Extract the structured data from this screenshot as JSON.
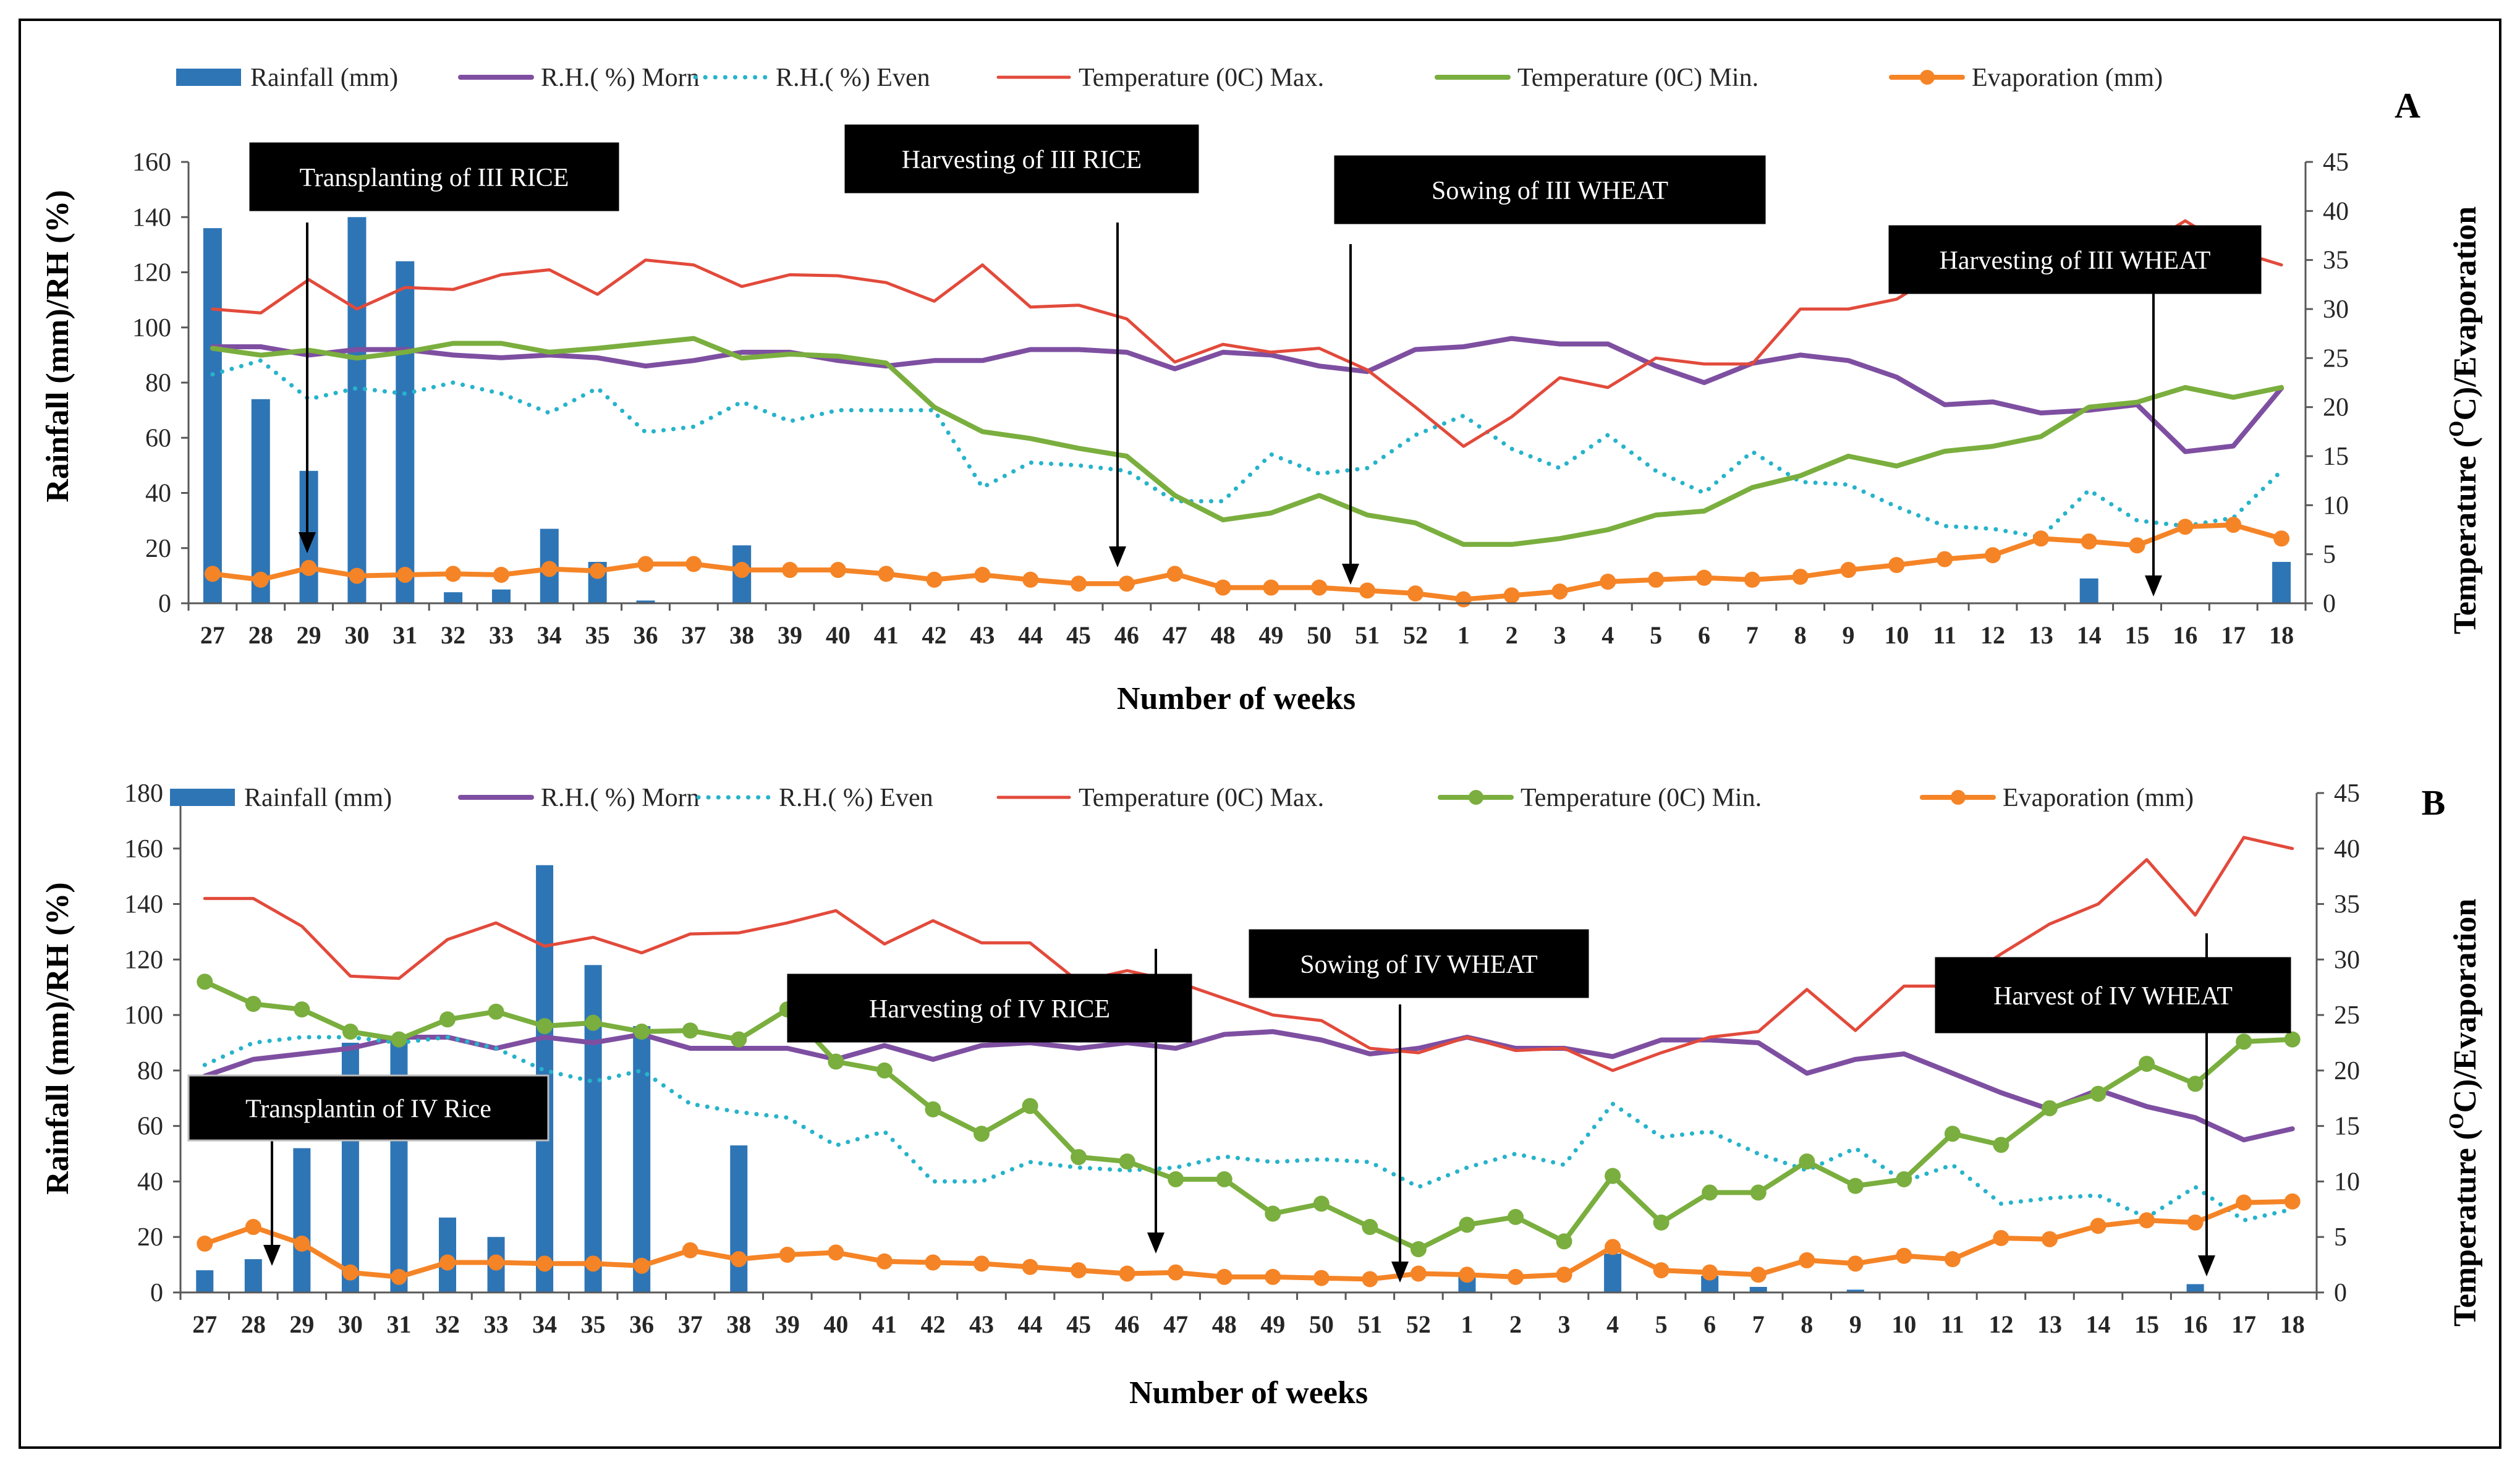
{
  "chart_data": [
    {
      "type": "bar",
      "panel_label": "A",
      "xlabel": "Number of weeks",
      "ylabel": "Rainfall (mm)/RH (%)",
      "y2label": "Temperature (°C)/Evaporation",
      "y2label_parts": [
        "Temperature (",
        "O",
        "C)/Evaporation"
      ],
      "ylim": [
        0,
        160
      ],
      "ylim2": [
        0,
        45
      ],
      "yticks": [
        0,
        20,
        40,
        60,
        80,
        100,
        120,
        140,
        160
      ],
      "y2ticks": [
        0,
        5,
        10,
        15,
        20,
        25,
        30,
        35,
        40,
        45
      ],
      "categories": [
        "27",
        "28",
        "29",
        "30",
        "31",
        "32",
        "33",
        "34",
        "35",
        "36",
        "37",
        "38",
        "39",
        "40",
        "41",
        "42",
        "43",
        "44",
        "45",
        "46",
        "47",
        "48",
        "49",
        "50",
        "51",
        "52",
        "1",
        "2",
        "3",
        "4",
        "5",
        "6",
        "7",
        "8",
        "9",
        "10",
        "11",
        "12",
        "13",
        "14",
        "15",
        "16",
        "17",
        "18"
      ],
      "series": [
        {
          "name": "Rainfall (mm)",
          "kind": "bar",
          "axis": "left",
          "color": "#2E75B6",
          "values": [
            136,
            74,
            48,
            140,
            124,
            4,
            5,
            27,
            15,
            1,
            0,
            21,
            0,
            0,
            0,
            0,
            0,
            0,
            0,
            0,
            0,
            0,
            0,
            0,
            0,
            0,
            0,
            0,
            0,
            0,
            0,
            0,
            0,
            0,
            0,
            0,
            0,
            0,
            0,
            9,
            0,
            0,
            0,
            15
          ]
        },
        {
          "name": "R.H.( %) Morn",
          "kind": "line",
          "axis": "left",
          "color": "#7E4FA1",
          "values": [
            93,
            93,
            90,
            92,
            92,
            90,
            89,
            90,
            89,
            86,
            88,
            91,
            91,
            88,
            86,
            88,
            88,
            92,
            92,
            91,
            85,
            91,
            90,
            86,
            84,
            92,
            93,
            96,
            94,
            94,
            86,
            80,
            87,
            90,
            88,
            82,
            72,
            73,
            69,
            70,
            72,
            55,
            57,
            78
          ]
        },
        {
          "name": "R.H.( %) Even",
          "kind": "dotted",
          "axis": "left",
          "color": "#26B3CB",
          "values": [
            83,
            88,
            74,
            78,
            76,
            80,
            76,
            69,
            78,
            62,
            64,
            73,
            66,
            70,
            70,
            70,
            42,
            51,
            50,
            48,
            37,
            37,
            54,
            47,
            49,
            61,
            68,
            56,
            49,
            61,
            48,
            40,
            55,
            44,
            43,
            35,
            28,
            27,
            24,
            41,
            30,
            28,
            31,
            48
          ]
        },
        {
          "name": "Temperature (0C) Max.",
          "kind": "line",
          "axis": "right",
          "color": "#E24A3B",
          "values": [
            30,
            29.6,
            33,
            30,
            32.2,
            32,
            33.5,
            34,
            31.5,
            35,
            34.5,
            32.3,
            33.5,
            33.4,
            32.7,
            30.8,
            34.5,
            30.2,
            30.4,
            29,
            24.6,
            26.4,
            25.6,
            26,
            23.8,
            20,
            16,
            19,
            23,
            22,
            25,
            24.4,
            24.4,
            30,
            30,
            31,
            34,
            33,
            36,
            37,
            36,
            39,
            36,
            34.5
          ]
        },
        {
          "name": "Temperature (0C) Min.",
          "kind": "line",
          "axis": "right",
          "color": "#7AAE3E",
          "values": [
            26,
            25.3,
            25.8,
            25,
            25.6,
            26.5,
            26.5,
            25.6,
            26,
            26.5,
            27,
            25,
            25.4,
            25.2,
            24.5,
            20,
            17.5,
            16.8,
            15.8,
            15,
            11,
            8.5,
            9.2,
            11,
            9,
            8.2,
            6,
            6,
            6.6,
            7.5,
            9,
            9.4,
            11.8,
            13,
            15,
            14,
            15.5,
            16,
            17,
            20,
            20.5,
            22,
            21,
            22
          ]
        },
        {
          "name": "Evaporation (mm)",
          "kind": "line-marker",
          "axis": "right",
          "color": "#F58426",
          "values": [
            3,
            2.4,
            3.6,
            2.8,
            2.9,
            3,
            2.9,
            3.5,
            3.3,
            4,
            4,
            3.4,
            3.4,
            3.4,
            3,
            2.4,
            2.9,
            2.4,
            2,
            2,
            3,
            1.6,
            1.6,
            1.6,
            1.3,
            1,
            0.4,
            0.8,
            1.2,
            2.2,
            2.4,
            2.6,
            2.4,
            2.7,
            3.4,
            3.9,
            4.5,
            4.9,
            6.6,
            6.3,
            5.9,
            7.8,
            8,
            6.6
          ]
        }
      ],
      "annotations": [
        {
          "text": "Transplanting of III RICE",
          "week_index": 2.2
        },
        {
          "text": "Harvesting of III RICE",
          "week_index": 19.0
        },
        {
          "text": "Sowing of III WHEAT",
          "week_index": 23.9
        },
        {
          "text": "Harvesting of III WHEAT",
          "week_index": 40.7
        }
      ]
    },
    {
      "type": "bar",
      "panel_label": "B",
      "xlabel": "Number of weeks",
      "ylabel": "Rainfall (mm)/RH (%)",
      "y2label": "Temperature (°C)/Evaporation",
      "y2label_parts": [
        "Temperature (",
        "O",
        "C)/Evaporation"
      ],
      "ylim": [
        0,
        180
      ],
      "ylim2": [
        0,
        45
      ],
      "yticks": [
        0,
        20,
        40,
        60,
        80,
        100,
        120,
        140,
        160,
        180
      ],
      "y2ticks": [
        0,
        5,
        10,
        15,
        20,
        25,
        30,
        35,
        40,
        45
      ],
      "categories": [
        "27",
        "28",
        "29",
        "30",
        "31",
        "32",
        "33",
        "34",
        "35",
        "36",
        "37",
        "38",
        "39",
        "40",
        "41",
        "42",
        "43",
        "44",
        "45",
        "46",
        "47",
        "48",
        "49",
        "50",
        "51",
        "52",
        "1",
        "2",
        "3",
        "4",
        "5",
        "6",
        "7",
        "8",
        "9",
        "10",
        "11",
        "12",
        "13",
        "14",
        "15",
        "16",
        "17",
        "18"
      ],
      "series": [
        {
          "name": "Rainfall (mm)",
          "kind": "bar",
          "axis": "left",
          "color": "#2E75B6",
          "values": [
            8,
            12,
            52,
            90,
            92,
            27,
            20,
            154,
            118,
            96,
            0,
            53,
            0,
            0,
            0,
            0,
            0,
            0,
            0,
            0,
            0,
            0,
            0,
            0,
            0,
            0,
            7,
            0,
            0,
            14,
            0,
            6,
            2,
            0,
            1,
            0,
            0,
            0,
            0,
            0,
            0,
            3,
            0,
            0
          ]
        },
        {
          "name": "R.H.( %) Morn",
          "kind": "line",
          "axis": "left",
          "color": "#7E4FA1",
          "values": [
            78,
            84,
            86,
            88,
            92,
            92,
            88,
            92,
            90,
            93,
            88,
            88,
            88,
            84,
            89,
            84,
            89,
            90,
            88,
            90,
            88,
            93,
            94,
            91,
            86,
            88,
            92,
            88,
            88,
            85,
            91,
            91,
            90,
            79,
            84,
            86,
            79,
            72,
            66,
            73,
            67,
            63,
            55,
            59
          ]
        },
        {
          "name": "R.H.( %) Even",
          "kind": "dotted",
          "axis": "left",
          "color": "#26B3CB",
          "values": [
            82,
            90,
            92,
            92,
            90,
            92,
            88,
            80,
            76,
            80,
            68,
            65,
            63,
            53,
            58,
            40,
            40,
            47,
            45,
            44,
            45,
            49,
            47,
            48,
            47,
            38,
            45,
            50,
            46,
            68,
            56,
            58,
            50,
            44,
            52,
            40,
            46,
            32,
            34,
            35,
            27,
            38,
            26,
            30
          ]
        },
        {
          "name": "Temperature (0C) Max.",
          "kind": "line",
          "axis": "right",
          "color": "#E24A3B",
          "values": [
            35.5,
            35.5,
            33,
            28.5,
            28.3,
            31.8,
            33.3,
            31.2,
            32,
            30.6,
            32.3,
            32.4,
            33.3,
            34.4,
            31.4,
            33.5,
            31.5,
            31.5,
            28,
            29,
            28,
            26.5,
            25,
            24.5,
            22,
            21.6,
            23,
            21.8,
            22,
            20,
            21.6,
            23,
            23.5,
            27.3,
            23.6,
            27.6,
            27.6,
            30.5,
            33.2,
            35,
            39,
            34,
            41,
            40
          ]
        },
        {
          "name": "Temperature (0C) Min.",
          "kind": "line-marker",
          "axis": "right",
          "color": "#7AAE3E",
          "values": [
            28,
            26,
            25.5,
            23.5,
            22.8,
            24.6,
            25.3,
            24,
            24.3,
            23.5,
            23.6,
            22.8,
            25.5,
            20.8,
            20,
            16.5,
            14.3,
            16.8,
            12.2,
            11.8,
            10.2,
            10.2,
            7.1,
            8,
            5.9,
            3.9,
            6.1,
            6.8,
            4.6,
            10.5,
            6.3,
            9,
            9,
            11.8,
            9.6,
            10.2,
            14.3,
            13.3,
            16.6,
            17.9,
            20.6,
            18.8,
            22.6,
            22.8
          ]
        },
        {
          "name": "Evaporation (mm)",
          "kind": "line-marker",
          "axis": "right",
          "color": "#F58426",
          "values": [
            4.4,
            5.9,
            4.4,
            1.8,
            1.4,
            2.7,
            2.7,
            2.6,
            2.6,
            2.4,
            3.8,
            3,
            3.4,
            3.6,
            2.8,
            2.7,
            2.6,
            2.3,
            2,
            1.7,
            1.8,
            1.4,
            1.4,
            1.3,
            1.2,
            1.7,
            1.6,
            1.4,
            1.6,
            4.1,
            2,
            1.8,
            1.6,
            2.9,
            2.6,
            3.3,
            3,
            4.9,
            4.8,
            6,
            6.5,
            6.3,
            8.1,
            8.2
          ]
        }
      ],
      "annotations": [
        {
          "text": "Transplantin  of IV Rice",
          "week_index": 1.3
        },
        {
          "text": "Harvesting of IV RICE",
          "week_index": 19.5
        },
        {
          "text": "Sowing of IV WHEAT",
          "week_index": 24.5
        },
        {
          "text": "Harvest of IV WHEAT",
          "week_index": 41.2
        }
      ]
    }
  ]
}
